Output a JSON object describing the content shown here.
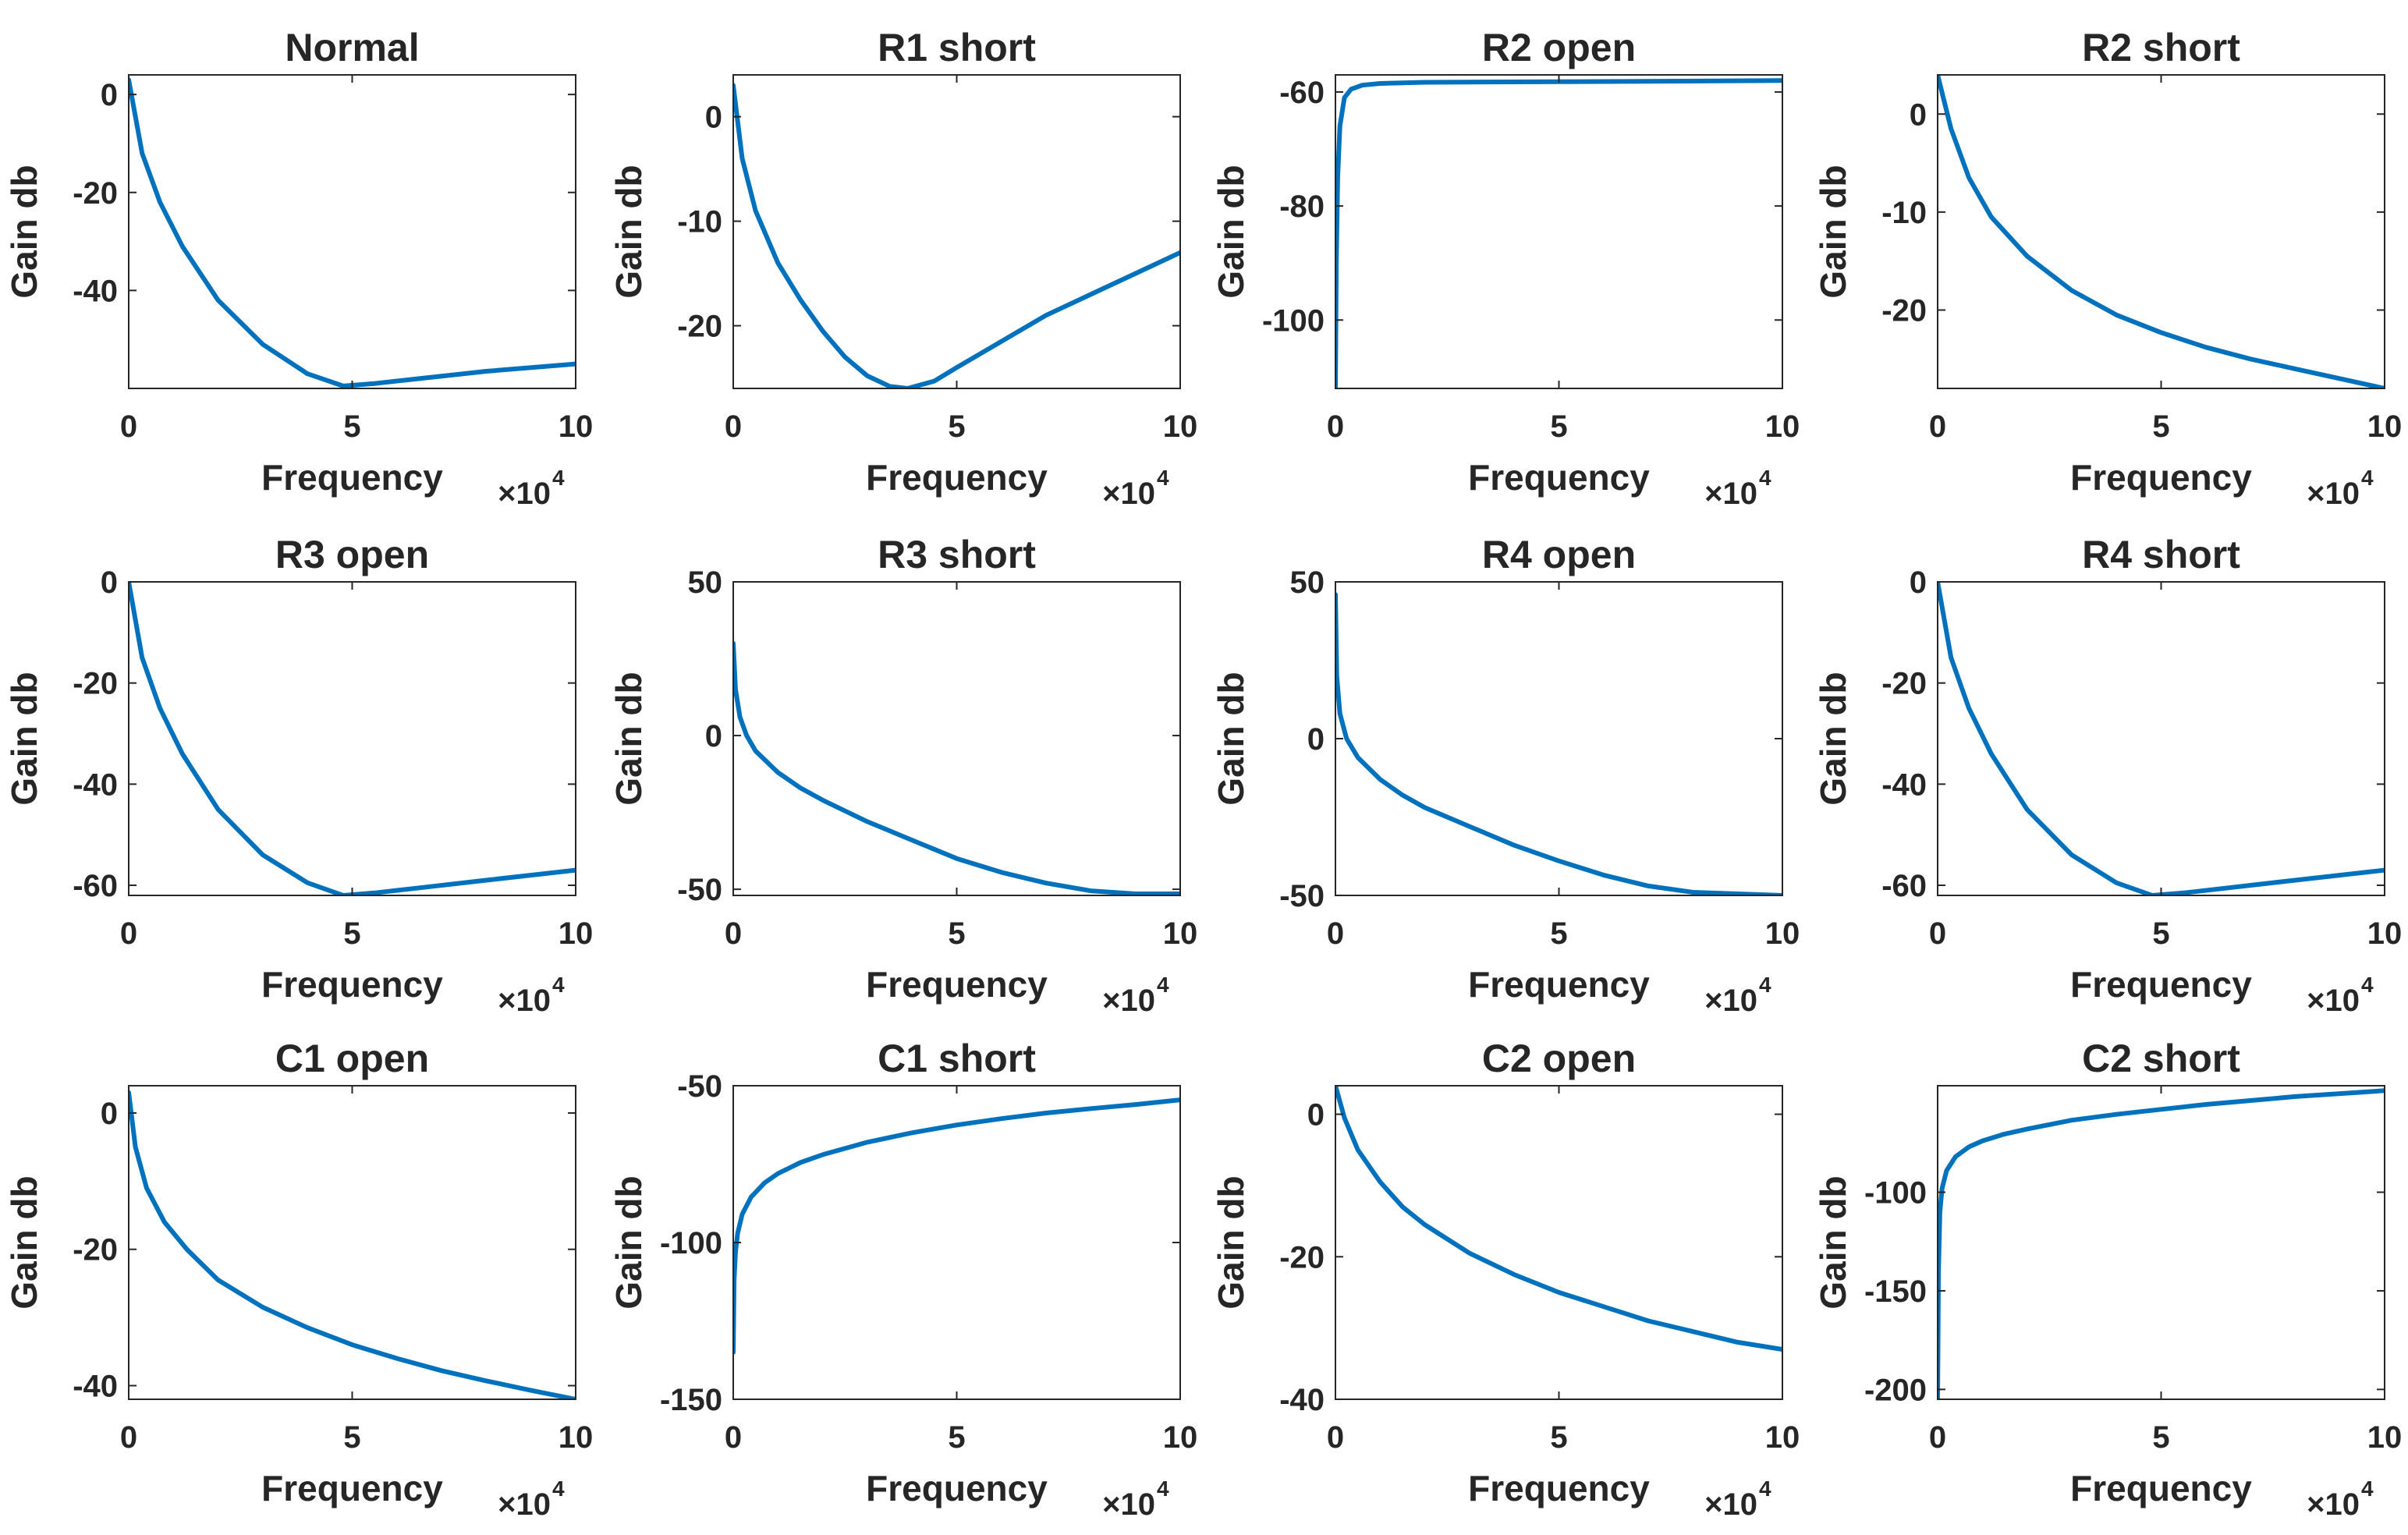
{
  "colors": {
    "line": "#0072BD",
    "axis": "#262626",
    "background": "#ffffff"
  },
  "chart_data": [
    {
      "type": "line",
      "title": "Normal",
      "xlabel": "Frequency",
      "ylabel": "Gain db",
      "x_multiplier": "×10",
      "x_multiplier_exp": "4",
      "xlim": [
        0,
        10
      ],
      "ylim": [
        -60,
        4
      ],
      "xticks": [
        0,
        5,
        10
      ],
      "xtick_labels": [
        "0",
        "5",
        "10"
      ],
      "yticks": [
        0,
        -20,
        -40
      ],
      "ytick_labels": [
        "0",
        "-20",
        "-40"
      ],
      "series": [
        {
          "name": "Gain",
          "x": [
            0,
            0.3,
            0.7,
            1.2,
            2,
            3,
            4,
            4.8,
            5.5,
            6.5,
            8,
            10
          ],
          "y": [
            3,
            -12,
            -22,
            -31,
            -42,
            -51,
            -57,
            -59.5,
            -59,
            -58,
            -56.5,
            -55
          ]
        }
      ]
    },
    {
      "type": "line",
      "title": "R1 short",
      "xlabel": "Frequency",
      "ylabel": "Gain db",
      "x_multiplier": "×10",
      "x_multiplier_exp": "4",
      "xlim": [
        0,
        10
      ],
      "ylim": [
        -26,
        4
      ],
      "xticks": [
        0,
        5,
        10
      ],
      "xtick_labels": [
        "0",
        "5",
        "10"
      ],
      "yticks": [
        0,
        -10,
        -20
      ],
      "ytick_labels": [
        "0",
        "-10",
        "-20"
      ],
      "series": [
        {
          "name": "Gain",
          "x": [
            0,
            0.2,
            0.5,
            1,
            1.5,
            2,
            2.5,
            3,
            3.5,
            3.9,
            4.5,
            5,
            6,
            7,
            8,
            9,
            10
          ],
          "y": [
            3,
            -4,
            -9,
            -14,
            -17.5,
            -20.5,
            -23,
            -24.8,
            -25.8,
            -26,
            -25.3,
            -24,
            -21.5,
            -19,
            -17,
            -15,
            -13
          ]
        }
      ]
    },
    {
      "type": "line",
      "title": "R2 open",
      "xlabel": "Frequency",
      "ylabel": "Gain db",
      "x_multiplier": "×10",
      "x_multiplier_exp": "4",
      "xlim": [
        0,
        10
      ],
      "ylim": [
        -112,
        -57
      ],
      "xticks": [
        0,
        5,
        10
      ],
      "xtick_labels": [
        "0",
        "5",
        "10"
      ],
      "yticks": [
        -60,
        -80,
        -100
      ],
      "ytick_labels": [
        "-60",
        "-80",
        "-100"
      ],
      "series": [
        {
          "name": "Gain",
          "x": [
            0,
            0.02,
            0.05,
            0.1,
            0.2,
            0.35,
            0.6,
            1,
            2,
            5,
            10
          ],
          "y": [
            -112,
            -90,
            -75,
            -66,
            -61,
            -59.5,
            -58.8,
            -58.5,
            -58.3,
            -58.2,
            -58
          ]
        }
      ]
    },
    {
      "type": "line",
      "title": "R2 short",
      "xlabel": "Frequency",
      "ylabel": "Gain db",
      "x_multiplier": "×10",
      "x_multiplier_exp": "4",
      "xlim": [
        0,
        10
      ],
      "ylim": [
        -28,
        4
      ],
      "xticks": [
        0,
        5,
        10
      ],
      "xtick_labels": [
        "0",
        "5",
        "10"
      ],
      "yticks": [
        0,
        -10,
        -20
      ],
      "ytick_labels": [
        "0",
        "-10",
        "-20"
      ],
      "series": [
        {
          "name": "Gain",
          "x": [
            0,
            0.3,
            0.7,
            1.2,
            2,
            3,
            4,
            5,
            6,
            7,
            8,
            9,
            10
          ],
          "y": [
            4,
            -1.5,
            -6.5,
            -10.5,
            -14.5,
            -18,
            -20.5,
            -22.3,
            -23.8,
            -25,
            -26,
            -27,
            -28
          ]
        }
      ]
    },
    {
      "type": "line",
      "title": "R3 open",
      "xlabel": "Frequency",
      "ylabel": "Gain db",
      "x_multiplier": "×10",
      "x_multiplier_exp": "4",
      "xlim": [
        0,
        10
      ],
      "ylim": [
        -62,
        0
      ],
      "xticks": [
        0,
        5,
        10
      ],
      "xtick_labels": [
        "0",
        "5",
        "10"
      ],
      "yticks": [
        0,
        -20,
        -40,
        -60
      ],
      "ytick_labels": [
        "0",
        "-20",
        "-40",
        "-60"
      ],
      "series": [
        {
          "name": "Gain",
          "x": [
            0,
            0.3,
            0.7,
            1.2,
            2,
            3,
            4,
            4.8,
            5.5,
            6.5,
            8,
            10
          ],
          "y": [
            0,
            -15,
            -25,
            -34,
            -45,
            -54,
            -59.5,
            -62,
            -61.5,
            -60.5,
            -59,
            -57
          ]
        }
      ]
    },
    {
      "type": "line",
      "title": "R3 short",
      "xlabel": "Frequency",
      "ylabel": "Gain db",
      "x_multiplier": "×10",
      "x_multiplier_exp": "4",
      "xlim": [
        0,
        10
      ],
      "ylim": [
        -52,
        50
      ],
      "xticks": [
        0,
        5,
        10
      ],
      "xtick_labels": [
        "0",
        "5",
        "10"
      ],
      "yticks": [
        50,
        0,
        -50
      ],
      "ytick_labels": [
        "50",
        "0",
        "-50"
      ],
      "series": [
        {
          "name": "Gain",
          "x": [
            0,
            0.05,
            0.15,
            0.3,
            0.5,
            1,
            1.5,
            2,
            3,
            4,
            5,
            6,
            7,
            8,
            9,
            10
          ],
          "y": [
            30,
            15,
            6,
            0,
            -5,
            -12,
            -17,
            -21,
            -28,
            -34,
            -40,
            -44.5,
            -48,
            -50.5,
            -51.5,
            -51.5
          ]
        }
      ]
    },
    {
      "type": "line",
      "title": "R4 open",
      "xlabel": "Frequency",
      "ylabel": "Gain db",
      "x_multiplier": "×10",
      "x_multiplier_exp": "4",
      "xlim": [
        0,
        10
      ],
      "ylim": [
        -50,
        50
      ],
      "xticks": [
        0,
        5,
        10
      ],
      "xtick_labels": [
        "0",
        "5",
        "10"
      ],
      "yticks": [
        50,
        0,
        -50
      ],
      "ytick_labels": [
        "50",
        "0",
        "-50"
      ],
      "series": [
        {
          "name": "Gain",
          "x": [
            0,
            0.03,
            0.1,
            0.25,
            0.5,
            1,
            1.5,
            2,
            3,
            4,
            5,
            6,
            7,
            8,
            9,
            10
          ],
          "y": [
            46,
            20,
            8,
            0,
            -6,
            -13,
            -18,
            -22,
            -28,
            -34,
            -39,
            -43.5,
            -47,
            -49,
            -49.5,
            -50
          ]
        }
      ]
    },
    {
      "type": "line",
      "title": "R4 short",
      "xlabel": "Frequency",
      "ylabel": "Gain db",
      "x_multiplier": "×10",
      "x_multiplier_exp": "4",
      "xlim": [
        0,
        10
      ],
      "ylim": [
        -62,
        0
      ],
      "xticks": [
        0,
        5,
        10
      ],
      "xtick_labels": [
        "0",
        "5",
        "10"
      ],
      "yticks": [
        0,
        -20,
        -40,
        -60
      ],
      "ytick_labels": [
        "0",
        "-20",
        "-40",
        "-60"
      ],
      "series": [
        {
          "name": "Gain",
          "x": [
            0,
            0.3,
            0.7,
            1.2,
            2,
            3,
            4,
            4.8,
            5.5,
            6.5,
            8,
            10
          ],
          "y": [
            0,
            -15,
            -25,
            -34,
            -45,
            -54,
            -59.5,
            -62,
            -61.5,
            -60.5,
            -59,
            -57
          ]
        }
      ]
    },
    {
      "type": "line",
      "title": "C1 open",
      "xlabel": "Frequency",
      "ylabel": "Gain db",
      "x_multiplier": "×10",
      "x_multiplier_exp": "4",
      "xlim": [
        0,
        10
      ],
      "ylim": [
        -42,
        4
      ],
      "xticks": [
        0,
        5,
        10
      ],
      "xtick_labels": [
        "0",
        "5",
        "10"
      ],
      "yticks": [
        0,
        -20,
        -40
      ],
      "ytick_labels": [
        "0",
        "-20",
        "-40"
      ],
      "series": [
        {
          "name": "Gain",
          "x": [
            0,
            0.15,
            0.4,
            0.8,
            1.3,
            2,
            3,
            4,
            5,
            6,
            7,
            8,
            9,
            10
          ],
          "y": [
            3,
            -5,
            -11,
            -16,
            -20,
            -24.5,
            -28.5,
            -31.5,
            -34,
            -36,
            -37.8,
            -39.3,
            -40.7,
            -42
          ]
        }
      ]
    },
    {
      "type": "line",
      "title": "C1 short",
      "xlabel": "Frequency",
      "ylabel": "Gain db",
      "x_multiplier": "×10",
      "x_multiplier_exp": "4",
      "xlim": [
        0,
        10
      ],
      "ylim": [
        -150,
        -50
      ],
      "xticks": [
        0,
        5,
        10
      ],
      "xtick_labels": [
        "0",
        "5",
        "10"
      ],
      "yticks": [
        -50,
        -100,
        -150
      ],
      "ytick_labels": [
        "-50",
        "-100",
        "-150"
      ],
      "series": [
        {
          "name": "Gain",
          "x": [
            0,
            0.02,
            0.05,
            0.1,
            0.2,
            0.4,
            0.7,
            1,
            1.5,
            2,
            3,
            4,
            5,
            6,
            7,
            8,
            9,
            10
          ],
          "y": [
            -135,
            -112,
            -103,
            -97,
            -91,
            -85.5,
            -81,
            -78,
            -74.5,
            -72,
            -68,
            -65,
            -62.5,
            -60.5,
            -58.7,
            -57.3,
            -56,
            -54.5
          ]
        }
      ]
    },
    {
      "type": "line",
      "title": "C2 open",
      "xlabel": "Frequency",
      "ylabel": "Gain db",
      "x_multiplier": "×10",
      "x_multiplier_exp": "4",
      "xlim": [
        0,
        10
      ],
      "ylim": [
        -40,
        4
      ],
      "xticks": [
        0,
        5,
        10
      ],
      "xtick_labels": [
        "0",
        "5",
        "10"
      ],
      "yticks": [
        0,
        -20,
        -40
      ],
      "ytick_labels": [
        "0",
        "-20",
        "-40"
      ],
      "series": [
        {
          "name": "Gain",
          "x": [
            0,
            0.2,
            0.5,
            1,
            1.5,
            2,
            3,
            4,
            5,
            6,
            7,
            8,
            9,
            10
          ],
          "y": [
            4,
            -0.5,
            -5,
            -9.5,
            -13,
            -15.5,
            -19.5,
            -22.5,
            -25,
            -27,
            -29,
            -30.5,
            -32,
            -33
          ]
        }
      ]
    },
    {
      "type": "line",
      "title": "C2 short",
      "xlabel": "Frequency",
      "ylabel": "Gain db",
      "x_multiplier": "×10",
      "x_multiplier_exp": "4",
      "xlim": [
        0,
        10
      ],
      "ylim": [
        -205,
        -46
      ],
      "xticks": [
        0,
        5,
        10
      ],
      "xtick_labels": [
        "0",
        "5",
        "10"
      ],
      "yticks": [
        -100,
        -150,
        -200
      ],
      "ytick_labels": [
        "-100",
        "-150",
        "-200"
      ],
      "series": [
        {
          "name": "Gain",
          "x": [
            0,
            0.02,
            0.05,
            0.1,
            0.2,
            0.4,
            0.7,
            1,
            1.5,
            2,
            3,
            4,
            5,
            6,
            7,
            8,
            9,
            10
          ],
          "y": [
            -205,
            -140,
            -110,
            -98,
            -89,
            -82,
            -77,
            -74,
            -70.5,
            -68,
            -63.5,
            -60.5,
            -58,
            -55.5,
            -53.5,
            -51.5,
            -50,
            -48.5
          ]
        }
      ]
    }
  ]
}
